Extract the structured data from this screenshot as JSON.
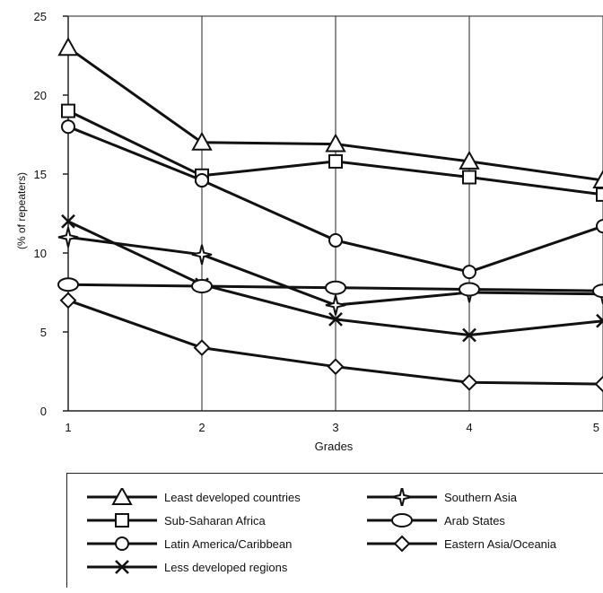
{
  "chart_data": {
    "type": "line",
    "xlabel": "Grades",
    "ylabel": "(% of repeaters)",
    "categories": [
      "1",
      "2",
      "3",
      "4",
      "5"
    ],
    "y_ticks": [
      "0",
      "5",
      "10",
      "15",
      "20",
      "25"
    ],
    "ylim": [
      0,
      25
    ],
    "grid": "vertical",
    "legend_position": "bottom",
    "series": [
      {
        "name": "Least developed countries",
        "marker": "triangle",
        "values": [
          23,
          17,
          16.9,
          15.8,
          14.6
        ]
      },
      {
        "name": "Sub-Saharan Africa",
        "marker": "square",
        "values": [
          19,
          14.9,
          15.8,
          14.8,
          13.7
        ]
      },
      {
        "name": "Latin America/Caribbean",
        "marker": "circle",
        "values": [
          18,
          14.6,
          10.8,
          8.8,
          11.7
        ]
      },
      {
        "name": "Less developed regions",
        "marker": "x",
        "values": [
          12,
          8,
          5.8,
          4.8,
          5.7
        ]
      },
      {
        "name": "Southern Asia",
        "marker": "star",
        "values": [
          11,
          9.9,
          6.7,
          7.5,
          7.4
        ]
      },
      {
        "name": "Arab States",
        "marker": "ellipse",
        "values": [
          8,
          7.9,
          7.8,
          7.7,
          7.6
        ]
      },
      {
        "name": "Eastern Asia/Oceania",
        "marker": "diamond",
        "values": [
          7,
          4,
          2.8,
          1.8,
          1.7
        ]
      }
    ]
  }
}
